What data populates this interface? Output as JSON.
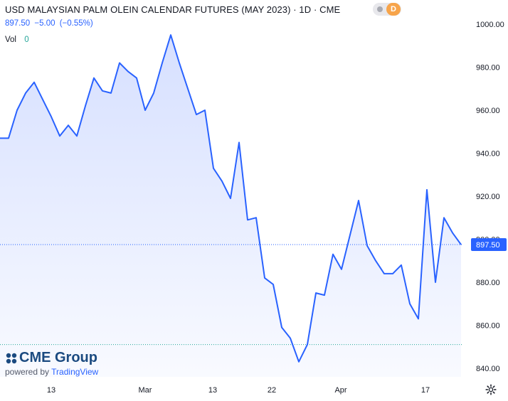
{
  "header": {
    "title": "USD MALAYSIAN PALM OLEIN CALENDAR FUTURES (MAY 2023) · 1D · CME",
    "price": "897.50",
    "change": "−5.00",
    "change_pct": "(−0.55%)",
    "vol_label": "Vol",
    "vol_value": "0",
    "badge": "D"
  },
  "branding": {
    "logo": "CME Group",
    "powered_by": "powered by",
    "tradingview": "TradingView"
  },
  "colors": {
    "line": "#2962ff",
    "fill_top": "#d4deff",
    "price_label_bg": "#2962ff",
    "dotted_level": "#26a69a",
    "badge": "#f7a44a"
  },
  "chart_data": {
    "type": "area",
    "title": "USD MALAYSIAN PALM OLEIN CALENDAR FUTURES (MAY 2023) · 1D · CME",
    "ylim": [
      836,
      1004
    ],
    "y_ticks": [
      840,
      860,
      880,
      900,
      920,
      940,
      960,
      980,
      1000
    ],
    "y_tick_labels": [
      "840.00",
      "860.00",
      "880.00",
      "900.00",
      "920.00",
      "940.00",
      "960.00",
      "980.00",
      "1000.00"
    ],
    "x_tick_labels": [
      "13",
      "Mar",
      "13",
      "22",
      "Apr",
      "17"
    ],
    "last_price_label": "897.50",
    "last_price": 897.5,
    "dotted_level": 851,
    "grid": false,
    "legend": "none",
    "series": [
      {
        "values": [
          947,
          947,
          960,
          968,
          973,
          965,
          957,
          948,
          953,
          948,
          962,
          975,
          969,
          968,
          982,
          978,
          975,
          960,
          968,
          982,
          995,
          982,
          970,
          958,
          960,
          933,
          927,
          919,
          945,
          909,
          910,
          882,
          879,
          859,
          854,
          843,
          851,
          875,
          874,
          893,
          886,
          902,
          918,
          897,
          890,
          884,
          884,
          888,
          870,
          863,
          923,
          880,
          910,
          903,
          897.5
        ]
      }
    ]
  }
}
